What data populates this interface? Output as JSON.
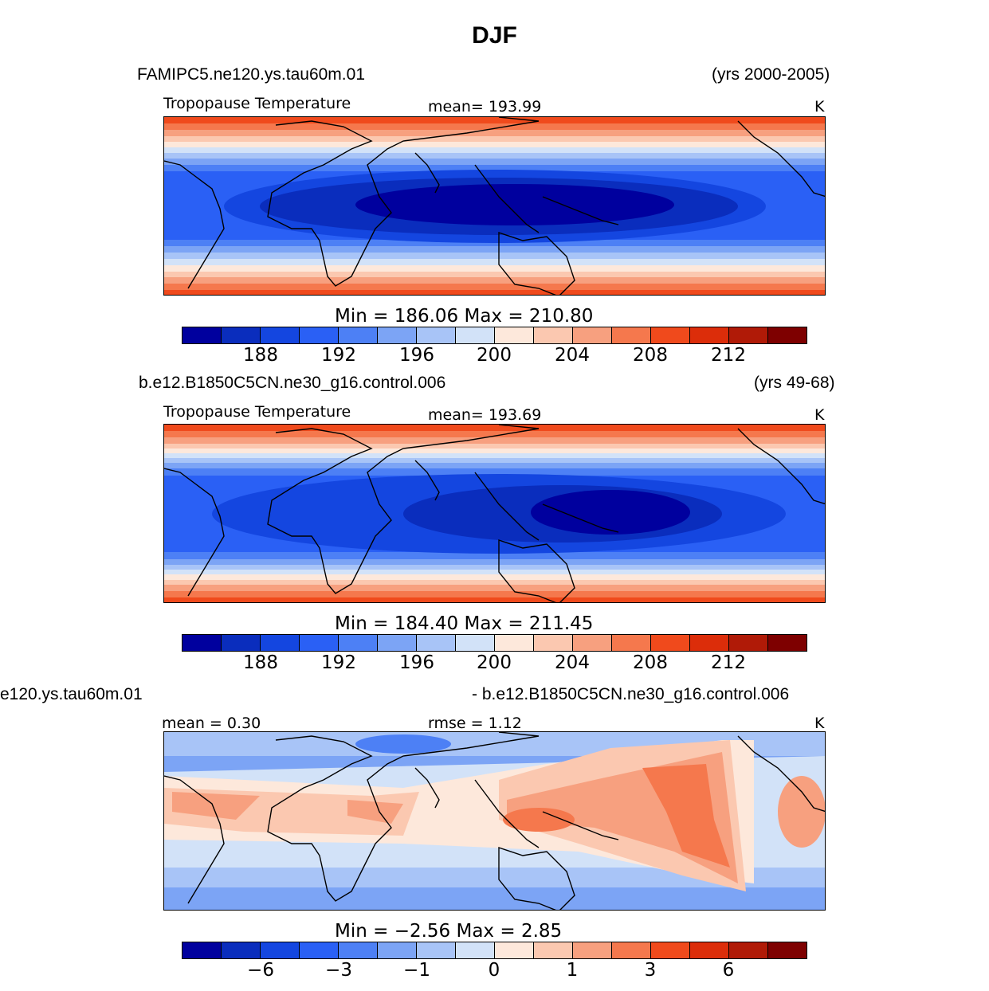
{
  "title": "DJF",
  "palette": [
    "#00009e",
    "#0a2dbd",
    "#1446e0",
    "#2a60f5",
    "#4d80f5",
    "#7ca4f5",
    "#a8c4f7",
    "#d2e2f8",
    "#fde8db",
    "#fbc8b0",
    "#f7a07f",
    "#f5784d",
    "#f04a1c",
    "#dc2d0a",
    "#b01a07",
    "#7e0000"
  ],
  "panels": [
    {
      "case": "FAMIPC5.ne120.ys.tau60m.01",
      "years": "(yrs 2000-2005)",
      "variable": "Tropopause Temperature",
      "mean_text": "mean=  193.99",
      "units": "K",
      "minmax": "Min  =  186.06  Max  =  210.80",
      "ticks": [
        "188",
        "192",
        "196",
        "200",
        "204",
        "208",
        "212"
      ]
    },
    {
      "case": "b.e12.B1850C5CN.ne30_g16.control.006",
      "years": "(yrs 49-68)",
      "variable": "Tropopause Temperature",
      "mean_text": "mean=  193.69",
      "units": "K",
      "minmax": "Min  =  184.40  Max  =  211.45",
      "ticks": [
        "188",
        "192",
        "196",
        "200",
        "204",
        "208",
        "212"
      ]
    },
    {
      "case_left": "e120.ys.tau60m.01",
      "case_right": "- b.e12.B1850C5CN.ne30_g16.control.006",
      "mean_text": "mean  =     0.30",
      "rmse_text": "rmse  =     1.12",
      "units": "K",
      "minmax": "Min  =    −2.56  Max  =     2.85",
      "ticks": [
        "−6",
        "−3",
        "−1",
        "0",
        "1",
        "3",
        "6"
      ]
    }
  ]
}
